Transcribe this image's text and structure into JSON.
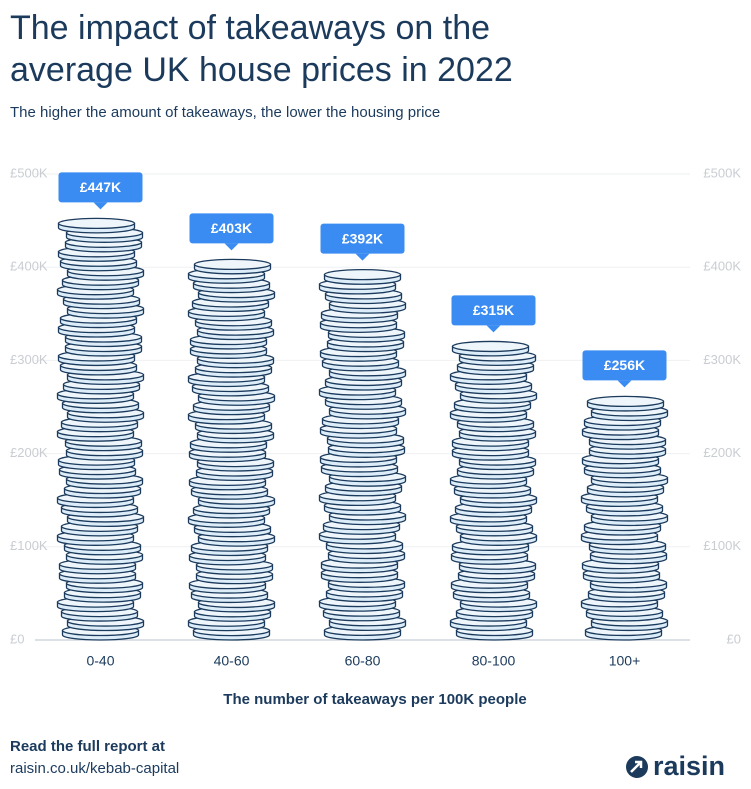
{
  "chart_data": {
    "type": "bar",
    "title": "The impact of takeaways on the average UK house prices in 2022",
    "subtitle": "The higher the amount of takeaways, the lower the housing price",
    "x_label": "The number of takeaways per 100K people",
    "categories": [
      "0-40",
      "40-60",
      "60-80",
      "80-100",
      "100+"
    ],
    "values": [
      447000,
      403000,
      392000,
      315000,
      256000
    ],
    "value_labels": [
      "£447K",
      "£403K",
      "£392K",
      "£315K",
      "£256K"
    ],
    "color": "#dcedf9",
    "label_color": "#3b8cf2",
    "ylim": [
      0,
      500000
    ],
    "yticks": [
      {
        "value": 0,
        "label": "£0"
      },
      {
        "value": 100000,
        "label": "£100K"
      },
      {
        "value": 200000,
        "label": "£200K"
      },
      {
        "value": 300000,
        "label": "£300K"
      },
      {
        "value": 400000,
        "label": "£400K"
      },
      {
        "value": 500000,
        "label": "£500K"
      }
    ],
    "grid": true
  },
  "footer": {
    "cta": "Read the full report at",
    "url": "raisin.co.uk/kebab-capital",
    "logo": "raisin"
  }
}
